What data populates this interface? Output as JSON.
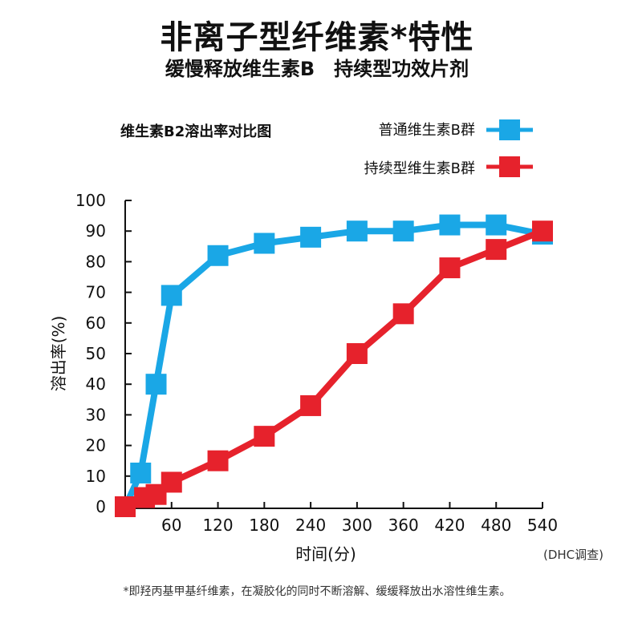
{
  "header": {
    "title": "非离子型纤维素*特性",
    "subtitle": "缓慢释放维生素B　持续型功效片剂"
  },
  "chart_data": {
    "type": "line",
    "title": "维生素B2溶出率对比图",
    "xlabel": "时间(分)",
    "ylabel": "溶出率(%)",
    "x_ticks": [
      60,
      120,
      180,
      240,
      300,
      360,
      420,
      480,
      540
    ],
    "y_ticks": [
      0,
      10,
      20,
      30,
      40,
      50,
      60,
      70,
      80,
      90,
      100
    ],
    "xlim": [
      0,
      540
    ],
    "ylim": [
      0,
      100
    ],
    "grid": false,
    "legend_position": "top-right",
    "series": [
      {
        "name": "普通维生素B群",
        "color": "#1aa7e6",
        "points": [
          [
            0,
            0
          ],
          [
            20,
            11
          ],
          [
            40,
            40
          ],
          [
            60,
            69
          ],
          [
            120,
            82
          ],
          [
            180,
            86
          ],
          [
            240,
            88
          ],
          [
            300,
            90
          ],
          [
            360,
            90
          ],
          [
            420,
            92
          ],
          [
            480,
            92
          ],
          [
            540,
            89
          ]
        ]
      },
      {
        "name": "持续型维生素B群",
        "color": "#e6222c",
        "points": [
          [
            0,
            0
          ],
          [
            25,
            3
          ],
          [
            40,
            4
          ],
          [
            60,
            8
          ],
          [
            120,
            15
          ],
          [
            180,
            23
          ],
          [
            240,
            33
          ],
          [
            300,
            50
          ],
          [
            360,
            63
          ],
          [
            420,
            78
          ],
          [
            480,
            84
          ],
          [
            540,
            90
          ]
        ]
      }
    ]
  },
  "notes": {
    "source": "(DHC调查)",
    "footnote": "*即羟丙基甲基纤维素，在凝胶化的同时不断溶解、缓缓释放出水溶性维生素。"
  }
}
